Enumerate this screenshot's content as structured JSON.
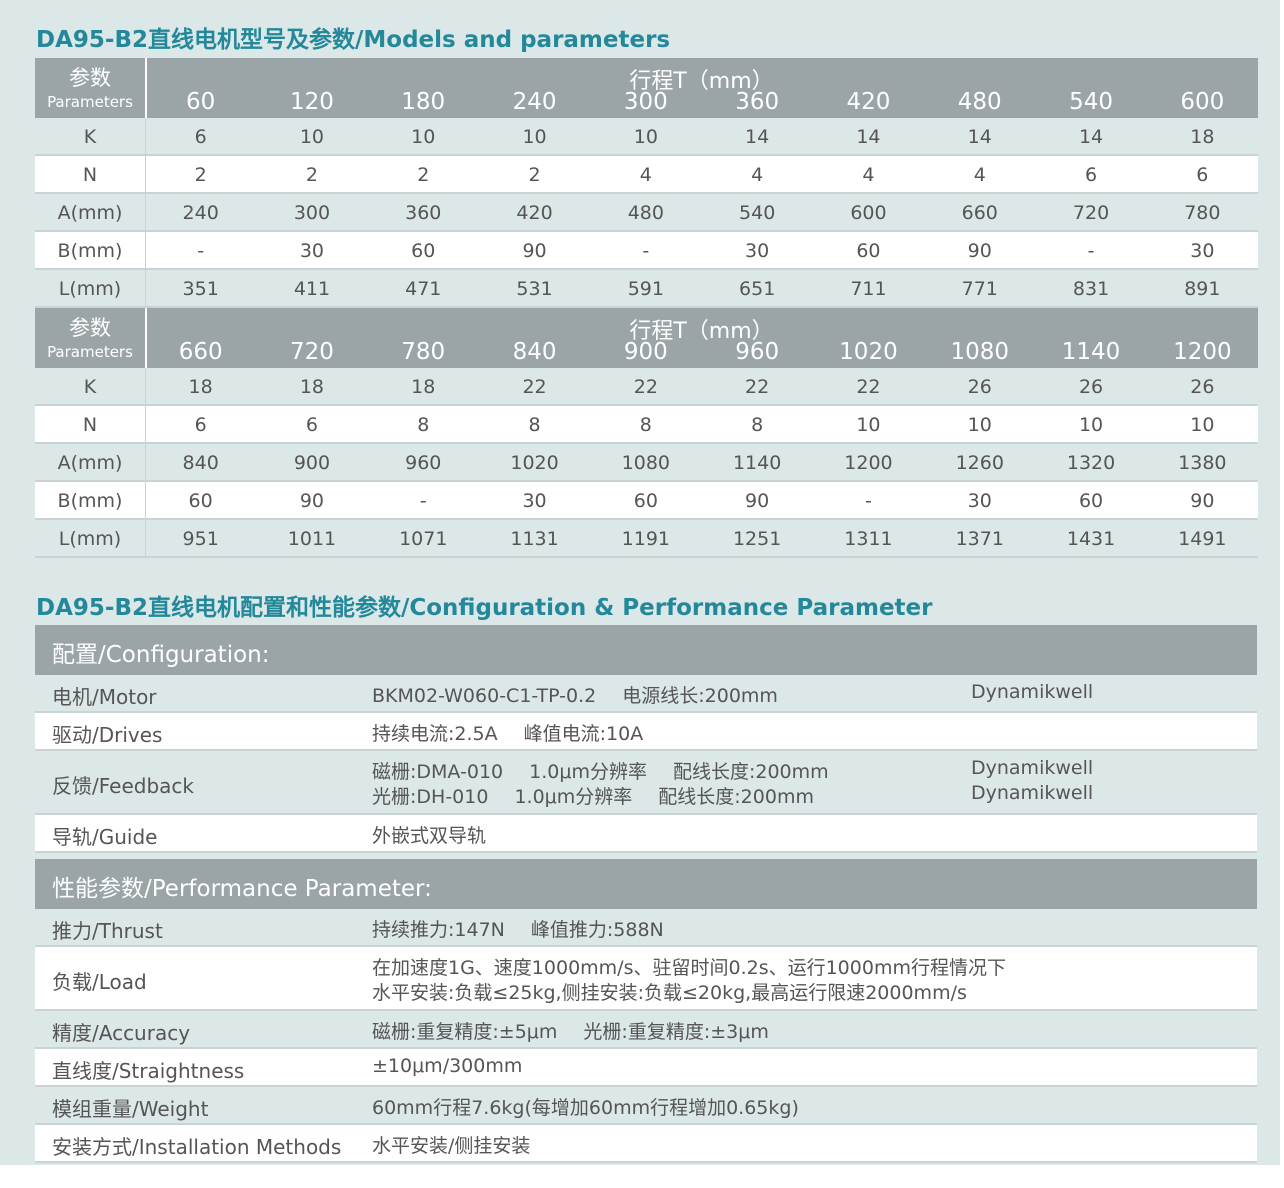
{
  "section1": {
    "title": "DA95-B2直线电机型号及参数/Models and parameters",
    "tables": [
      {
        "param_label": "参数",
        "param_label_en": "Parameters",
        "stroke_label": "行程T（mm）",
        "strokes": [
          60,
          120,
          180,
          240,
          300,
          360,
          420,
          480,
          540,
          600
        ],
        "rows": [
          {
            "label": "K",
            "values": [
              6,
              10,
              10,
              10,
              10,
              14,
              14,
              14,
              14,
              18
            ]
          },
          {
            "label": "N",
            "values": [
              2,
              2,
              2,
              2,
              4,
              4,
              4,
              4,
              6,
              6
            ]
          },
          {
            "label": "A(mm)",
            "values": [
              240,
              300,
              360,
              420,
              480,
              540,
              600,
              660,
              720,
              780
            ]
          },
          {
            "label": "B(mm)",
            "values": [
              "-",
              30,
              60,
              90,
              "-",
              30,
              60,
              90,
              "-",
              30
            ]
          },
          {
            "label": "L(mm)",
            "values": [
              351,
              411,
              471,
              531,
              591,
              651,
              711,
              771,
              831,
              891
            ]
          }
        ]
      },
      {
        "param_label": "参数",
        "param_label_en": "Parameters",
        "stroke_label": "行程T（mm）",
        "strokes": [
          660,
          720,
          780,
          840,
          900,
          960,
          1020,
          1080,
          1140,
          1200
        ],
        "rows": [
          {
            "label": "K",
            "values": [
              18,
              18,
              18,
              22,
              22,
              22,
              22,
              26,
              26,
              26
            ]
          },
          {
            "label": "N",
            "values": [
              6,
              6,
              8,
              8,
              8,
              8,
              10,
              10,
              10,
              10
            ]
          },
          {
            "label": "A(mm)",
            "values": [
              840,
              900,
              960,
              1020,
              1080,
              1140,
              1200,
              1260,
              1320,
              1380
            ]
          },
          {
            "label": "B(mm)",
            "values": [
              60,
              90,
              "-",
              30,
              60,
              90,
              "-",
              30,
              60,
              90
            ]
          },
          {
            "label": "L(mm)",
            "values": [
              951,
              1011,
              1071,
              1131,
              1191,
              1251,
              1311,
              1371,
              1431,
              1491
            ]
          }
        ]
      }
    ]
  },
  "section2": {
    "title": "DA95-B2直线电机配置和性能参数/Configuration & Performance Parameter",
    "groups": [
      {
        "heading": "配置/Configuration:",
        "rows": [
          {
            "label": "电机/Motor",
            "lines": [
              [
                "BKM02-W060-C1-TP-0.2",
                "电源线长:200mm"
              ]
            ],
            "brands": [
              "Dynamikwell"
            ]
          },
          {
            "label": "驱动/Drives",
            "lines": [
              [
                "持续电流:2.5A",
                "峰值电流:10A"
              ]
            ]
          },
          {
            "label": "反馈/Feedback",
            "lines": [
              [
                "磁栅:DMA-010",
                "1.0μm分辨率",
                "配线长度:200mm"
              ],
              [
                "光栅:DH-010",
                "1.0μm分辨率",
                "配线长度:200mm"
              ]
            ],
            "brands": [
              "Dynamikwell",
              "Dynamikwell"
            ]
          },
          {
            "label": "导轨/Guide",
            "lines": [
              [
                "外嵌式双导轨"
              ]
            ]
          }
        ]
      },
      {
        "heading": "性能参数/Performance Parameter:",
        "rows": [
          {
            "label": "推力/Thrust",
            "lines": [
              [
                "持续推力:147N",
                "峰值推力:588N"
              ]
            ]
          },
          {
            "label": "负载/Load",
            "lines": [
              [
                "在加速度1G、速度1000mm/s、驻留时间0.2s、运行1000mm行程情况下"
              ],
              [
                "水平安装:负载≤25kg,侧挂安装:负载≤20kg,最高运行限速2000mm/s"
              ]
            ]
          },
          {
            "label": "精度/Accuracy",
            "lines": [
              [
                "磁栅:重复精度:±5μm",
                "光栅:重复精度:±3μm"
              ]
            ]
          },
          {
            "label": "直线度/Straightness",
            "lines": [
              [
                "±10μm/300mm"
              ]
            ]
          },
          {
            "label": "模组重量/Weight",
            "lines": [
              [
                "60mm行程7.6kg(每增加60mm行程增加0.65kg)"
              ]
            ]
          },
          {
            "label": "安装方式/Installation Methods",
            "lines": [
              [
                "水平安装/侧挂安装"
              ]
            ]
          }
        ]
      }
    ]
  }
}
